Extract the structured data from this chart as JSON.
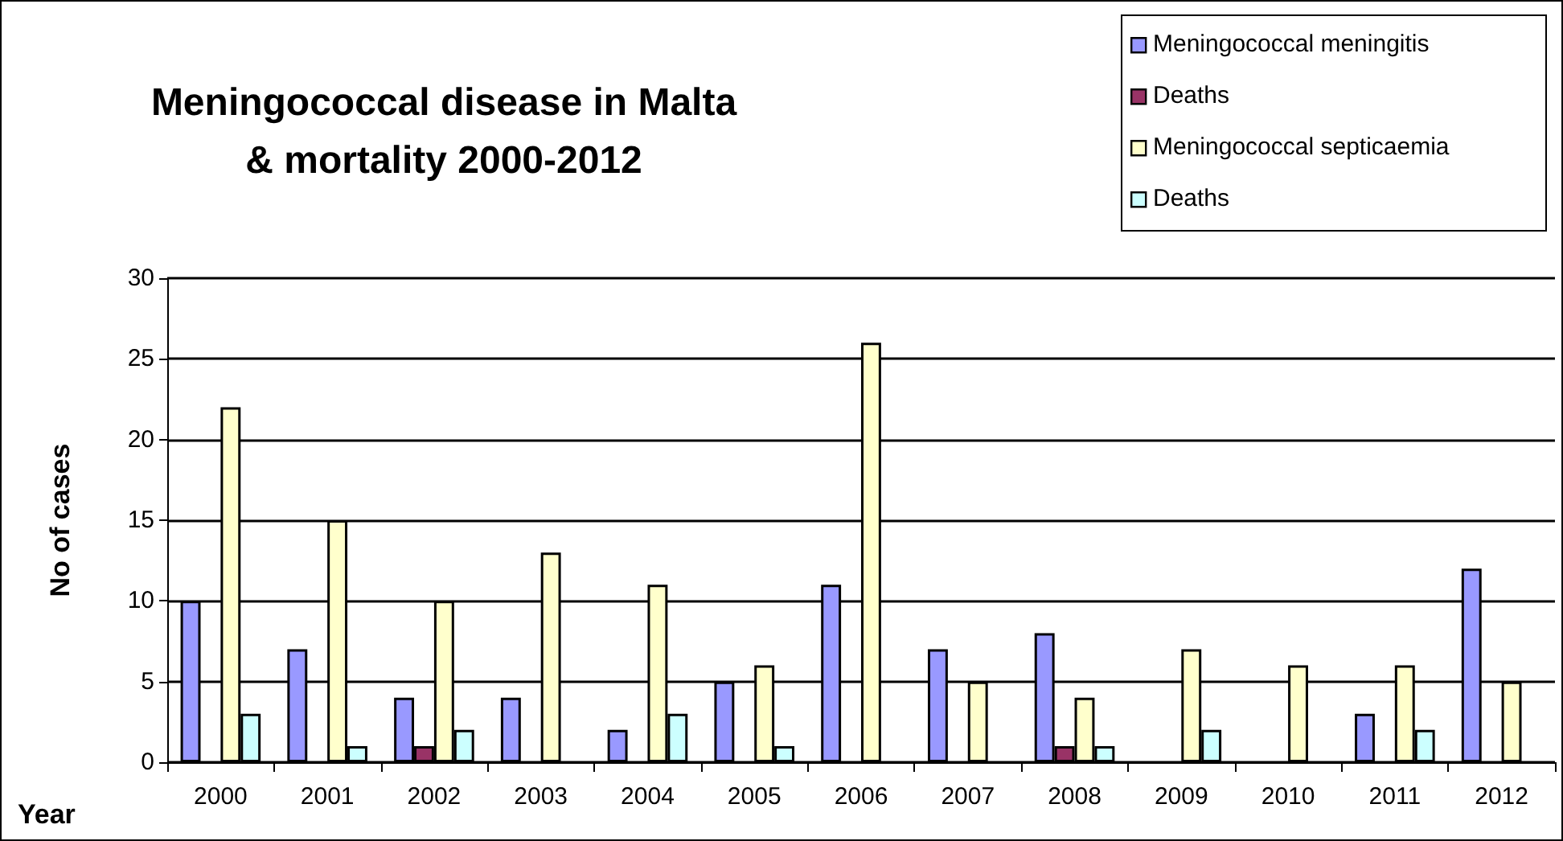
{
  "chart_data": {
    "type": "bar",
    "title": "Meningococcal disease in Malta\n& mortality 2000-2012",
    "xlabel": "Year",
    "ylabel": "No of cases",
    "categories": [
      "2000",
      "2001",
      "2002",
      "2003",
      "2004",
      "2005",
      "2006",
      "2007",
      "2008",
      "2009",
      "2010",
      "2011",
      "2012"
    ],
    "series": [
      {
        "name": "Meningococcal meningitis",
        "color": "#9999ff",
        "values": [
          10,
          7,
          4,
          4,
          2,
          5,
          11,
          7,
          8,
          0,
          0,
          3,
          12
        ]
      },
      {
        "name": "Deaths",
        "color": "#993366",
        "values": [
          0,
          0,
          1,
          0,
          0,
          0,
          0,
          0,
          1,
          0,
          0,
          0,
          0
        ]
      },
      {
        "name": "Meningococcal septicaemia",
        "color": "#ffffcc",
        "values": [
          22,
          15,
          10,
          13,
          11,
          6,
          26,
          5,
          4,
          7,
          6,
          6,
          5
        ]
      },
      {
        "name": "Deaths",
        "color": "#ccffff",
        "values": [
          3,
          1,
          2,
          0,
          3,
          1,
          0,
          0,
          1,
          2,
          0,
          2,
          0
        ]
      }
    ],
    "ylim": [
      0,
      30
    ],
    "yticks": [
      0,
      5,
      10,
      15,
      20,
      25,
      30
    ],
    "grid": "y",
    "legend": "top right"
  }
}
